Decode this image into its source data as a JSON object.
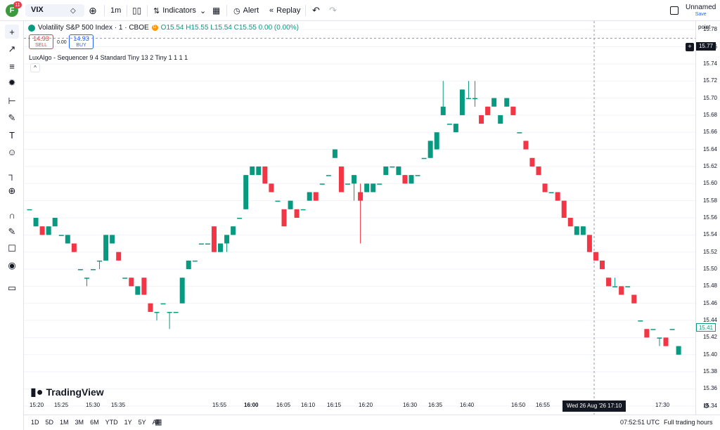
{
  "topbar": {
    "avatar_letter": "F",
    "avatar_badge": "11",
    "symbol": "VIX",
    "interval": "1m",
    "indicators_label": "Indicators",
    "alert_label": "Alert",
    "replay_label": "Replay",
    "layout_name": "Unnamed",
    "save_label": "Save"
  },
  "legend": {
    "title": "Volatility S&P 500 Index · 1 · CBOE",
    "ohlc": "O15.54 H15.55 L15.54 C15.55 0.00 (0.00%)",
    "sell_price": "14.93",
    "sell_label": "SELL",
    "spread": "0.00",
    "buy_price": "14.93",
    "buy_label": "BUY",
    "indicator": "LuxAlgo - Sequencer 9 4 Standard Tiny 13 2 Tiny 1 1 1 1",
    "collapse_icon": "^"
  },
  "price_axis": {
    "unit": "point",
    "ticks": [
      "15.78",
      "15.76",
      "15.74",
      "15.72",
      "15.70",
      "15.68",
      "15.66",
      "15.64",
      "15.62",
      "15.60",
      "15.58",
      "15.56",
      "15.54",
      "15.52",
      "15.50",
      "15.48",
      "15.46",
      "15.44",
      "15.42",
      "15.40",
      "15.38",
      "15.36",
      "15.34"
    ],
    "last_price": "15.41",
    "crosshair_price": "15.77"
  },
  "time_axis": {
    "ticks": [
      "15:20",
      "15:25",
      "15:30",
      "15:35",
      "15:55",
      "16:00",
      "16:05",
      "16:10",
      "16:15",
      "16:20",
      "16:30",
      "16:35",
      "16:40",
      "16:50",
      "16:55",
      "17:30"
    ],
    "crosshair_time": "Wed 26 Aug '26  17:10"
  },
  "bottombar": {
    "ranges": [
      "1D",
      "5D",
      "1M",
      "3M",
      "6M",
      "YTD",
      "1Y",
      "5Y",
      "All"
    ],
    "clock": "07:52:51 UTC",
    "session": "Full trading hours"
  },
  "branding": "TradingView",
  "colors": {
    "up": "#089981",
    "down": "#f23645",
    "text": "#131722"
  },
  "chart_data": {
    "type": "candlestick",
    "ylim": [
      15.33,
      15.79
    ],
    "candles": [
      {
        "o": 15.57,
        "h": 15.57,
        "l": 15.57,
        "c": 15.57
      },
      {
        "o": 15.55,
        "h": 15.56,
        "l": 15.55,
        "c": 15.56
      },
      {
        "o": 15.55,
        "h": 15.55,
        "l": 15.54,
        "c": 15.54
      },
      {
        "o": 15.54,
        "h": 15.55,
        "l": 15.54,
        "c": 15.55
      },
      {
        "o": 15.55,
        "h": 15.56,
        "l": 15.55,
        "c": 15.56
      },
      {
        "o": 15.54,
        "h": 15.54,
        "l": 15.54,
        "c": 15.54
      },
      {
        "o": 15.53,
        "h": 15.54,
        "l": 15.53,
        "c": 15.54
      },
      {
        "o": 15.53,
        "h": 15.53,
        "l": 15.52,
        "c": 15.52
      },
      {
        "o": 15.5,
        "h": 15.5,
        "l": 15.5,
        "c": 15.5
      },
      {
        "o": 15.49,
        "h": 15.49,
        "l": 15.48,
        "c": 15.49
      },
      {
        "o": 15.5,
        "h": 15.5,
        "l": 15.5,
        "c": 15.5
      },
      {
        "o": 15.51,
        "h": 15.51,
        "l": 15.5,
        "c": 15.51
      },
      {
        "o": 15.51,
        "h": 15.54,
        "l": 15.51,
        "c": 15.54
      },
      {
        "o": 15.53,
        "h": 15.54,
        "l": 15.53,
        "c": 15.54
      },
      {
        "o": 15.52,
        "h": 15.52,
        "l": 15.51,
        "c": 15.51
      },
      {
        "o": 15.49,
        "h": 15.49,
        "l": 15.49,
        "c": 15.49
      },
      {
        "o": 15.49,
        "h": 15.49,
        "l": 15.48,
        "c": 15.48
      },
      {
        "o": 15.47,
        "h": 15.48,
        "l": 15.47,
        "c": 15.48
      },
      {
        "o": 15.49,
        "h": 15.49,
        "l": 15.47,
        "c": 15.47
      },
      {
        "o": 15.46,
        "h": 15.46,
        "l": 15.45,
        "c": 15.45
      },
      {
        "o": 15.45,
        "h": 15.45,
        "l": 15.44,
        "c": 15.45
      },
      {
        "o": 15.46,
        "h": 15.46,
        "l": 15.46,
        "c": 15.46
      },
      {
        "o": 15.45,
        "h": 15.45,
        "l": 15.43,
        "c": 15.45
      },
      {
        "o": 15.45,
        "h": 15.45,
        "l": 15.45,
        "c": 15.45
      },
      {
        "o": 15.46,
        "h": 15.49,
        "l": 15.46,
        "c": 15.49
      },
      {
        "o": 15.5,
        "h": 15.51,
        "l": 15.5,
        "c": 15.51
      },
      {
        "o": 15.51,
        "h": 15.51,
        "l": 15.51,
        "c": 15.51
      },
      {
        "o": 15.53,
        "h": 15.53,
        "l": 15.53,
        "c": 15.53
      },
      {
        "o": 15.53,
        "h": 15.53,
        "l": 15.53,
        "c": 15.53
      },
      {
        "o": 15.55,
        "h": 15.55,
        "l": 15.52,
        "c": 15.52
      },
      {
        "o": 15.52,
        "h": 15.53,
        "l": 15.52,
        "c": 15.53
      },
      {
        "o": 15.53,
        "h": 15.54,
        "l": 15.52,
        "c": 15.54
      },
      {
        "o": 15.54,
        "h": 15.55,
        "l": 15.54,
        "c": 15.55
      },
      {
        "o": 15.56,
        "h": 15.56,
        "l": 15.56,
        "c": 15.56
      },
      {
        "o": 15.57,
        "h": 15.61,
        "l": 15.57,
        "c": 15.61
      },
      {
        "o": 15.61,
        "h": 15.62,
        "l": 15.61,
        "c": 15.62
      },
      {
        "o": 15.61,
        "h": 15.62,
        "l": 15.61,
        "c": 15.62
      },
      {
        "o": 15.62,
        "h": 15.62,
        "l": 15.6,
        "c": 15.6
      },
      {
        "o": 15.6,
        "h": 15.6,
        "l": 15.59,
        "c": 15.59
      },
      {
        "o": 15.58,
        "h": 15.58,
        "l": 15.58,
        "c": 15.58
      },
      {
        "o": 15.57,
        "h": 15.57,
        "l": 15.55,
        "c": 15.55
      },
      {
        "o": 15.57,
        "h": 15.58,
        "l": 15.57,
        "c": 15.58
      },
      {
        "o": 15.57,
        "h": 15.57,
        "l": 15.56,
        "c": 15.56
      },
      {
        "o": 15.57,
        "h": 15.57,
        "l": 15.57,
        "c": 15.57
      },
      {
        "o": 15.58,
        "h": 15.59,
        "l": 15.58,
        "c": 15.59
      },
      {
        "o": 15.59,
        "h": 15.59,
        "l": 15.58,
        "c": 15.58
      },
      {
        "o": 15.6,
        "h": 15.6,
        "l": 15.6,
        "c": 15.6
      },
      {
        "o": 15.61,
        "h": 15.61,
        "l": 15.61,
        "c": 15.61
      },
      {
        "o": 15.63,
        "h": 15.64,
        "l": 15.63,
        "c": 15.64
      },
      {
        "o": 15.62,
        "h": 15.62,
        "l": 15.59,
        "c": 15.59
      },
      {
        "o": 15.6,
        "h": 15.6,
        "l": 15.6,
        "c": 15.6
      },
      {
        "o": 15.6,
        "h": 15.61,
        "l": 15.58,
        "c": 15.61
      },
      {
        "o": 15.59,
        "h": 15.6,
        "l": 15.53,
        "c": 15.58
      },
      {
        "o": 15.59,
        "h": 15.6,
        "l": 15.59,
        "c": 15.6
      },
      {
        "o": 15.59,
        "h": 15.6,
        "l": 15.59,
        "c": 15.6
      },
      {
        "o": 15.6,
        "h": 15.6,
        "l": 15.6,
        "c": 15.6
      },
      {
        "o": 15.61,
        "h": 15.62,
        "l": 15.61,
        "c": 15.62
      },
      {
        "o": 15.62,
        "h": 15.62,
        "l": 15.62,
        "c": 15.62
      },
      {
        "o": 15.61,
        "h": 15.62,
        "l": 15.61,
        "c": 15.62
      },
      {
        "o": 15.61,
        "h": 15.61,
        "l": 15.6,
        "c": 15.6
      },
      {
        "o": 15.6,
        "h": 15.61,
        "l": 15.6,
        "c": 15.61
      },
      {
        "o": 15.61,
        "h": 15.61,
        "l": 15.61,
        "c": 15.61
      },
      {
        "o": 15.63,
        "h": 15.63,
        "l": 15.63,
        "c": 15.63
      },
      {
        "o": 15.63,
        "h": 15.65,
        "l": 15.63,
        "c": 15.65
      },
      {
        "o": 15.64,
        "h": 15.66,
        "l": 15.64,
        "c": 15.66
      },
      {
        "o": 15.68,
        "h": 15.72,
        "l": 15.68,
        "c": 15.69
      },
      {
        "o": 15.67,
        "h": 15.67,
        "l": 15.67,
        "c": 15.67
      },
      {
        "o": 15.66,
        "h": 15.67,
        "l": 15.66,
        "c": 15.67
      },
      {
        "o": 15.68,
        "h": 15.71,
        "l": 15.68,
        "c": 15.71
      },
      {
        "o": 15.7,
        "h": 15.72,
        "l": 15.7,
        "c": 15.7
      },
      {
        "o": 15.7,
        "h": 15.72,
        "l": 15.69,
        "c": 15.7
      },
      {
        "o": 15.68,
        "h": 15.68,
        "l": 15.67,
        "c": 15.67
      },
      {
        "o": 15.69,
        "h": 15.69,
        "l": 15.68,
        "c": 15.68
      },
      {
        "o": 15.69,
        "h": 15.7,
        "l": 15.69,
        "c": 15.7
      },
      {
        "o": 15.67,
        "h": 15.68,
        "l": 15.67,
        "c": 15.68
      },
      {
        "o": 15.69,
        "h": 15.7,
        "l": 15.69,
        "c": 15.7
      },
      {
        "o": 15.69,
        "h": 15.69,
        "l": 15.68,
        "c": 15.68
      },
      {
        "o": 15.66,
        "h": 15.66,
        "l": 15.66,
        "c": 15.66
      },
      {
        "o": 15.65,
        "h": 15.65,
        "l": 15.64,
        "c": 15.64
      },
      {
        "o": 15.63,
        "h": 15.63,
        "l": 15.62,
        "c": 15.62
      },
      {
        "o": 15.62,
        "h": 15.62,
        "l": 15.61,
        "c": 15.61
      },
      {
        "o": 15.6,
        "h": 15.6,
        "l": 15.59,
        "c": 15.59
      },
      {
        "o": 15.59,
        "h": 15.59,
        "l": 15.59,
        "c": 15.59
      },
      {
        "o": 15.59,
        "h": 15.59,
        "l": 15.58,
        "c": 15.58
      },
      {
        "o": 15.58,
        "h": 15.58,
        "l": 15.56,
        "c": 15.56
      },
      {
        "o": 15.56,
        "h": 15.56,
        "l": 15.55,
        "c": 15.55
      },
      {
        "o": 15.54,
        "h": 15.55,
        "l": 15.54,
        "c": 15.55
      },
      {
        "o": 15.54,
        "h": 15.55,
        "l": 15.54,
        "c": 15.55
      },
      {
        "o": 15.54,
        "h": 15.54,
        "l": 15.52,
        "c": 15.52
      },
      {
        "o": 15.52,
        "h": 15.52,
        "l": 15.51,
        "c": 15.51
      },
      {
        "o": 15.51,
        "h": 15.51,
        "l": 15.5,
        "c": 15.5
      },
      {
        "o": 15.49,
        "h": 15.49,
        "l": 15.48,
        "c": 15.48
      },
      {
        "o": 15.48,
        "h": 15.49,
        "l": 15.48,
        "c": 15.48
      },
      {
        "o": 15.48,
        "h": 15.48,
        "l": 15.47,
        "c": 15.47
      },
      {
        "o": 15.48,
        "h": 15.48,
        "l": 15.48,
        "c": 15.48
      },
      {
        "o": 15.47,
        "h": 15.47,
        "l": 15.46,
        "c": 15.46
      },
      {
        "o": 15.44,
        "h": 15.44,
        "l": 15.44,
        "c": 15.44
      },
      {
        "o": 15.43,
        "h": 15.43,
        "l": 15.42,
        "c": 15.42
      },
      {
        "o": 15.43,
        "h": 15.43,
        "l": 15.43,
        "c": 15.43
      },
      {
        "o": 15.42,
        "h": 15.42,
        "l": 15.41,
        "c": 15.42
      },
      {
        "o": 15.42,
        "h": 15.42,
        "l": 15.41,
        "c": 15.41
      },
      {
        "o": 15.43,
        "h": 15.43,
        "l": 15.43,
        "c": 15.43
      },
      {
        "o": 15.4,
        "h": 15.41,
        "l": 15.4,
        "c": 15.41
      }
    ]
  }
}
